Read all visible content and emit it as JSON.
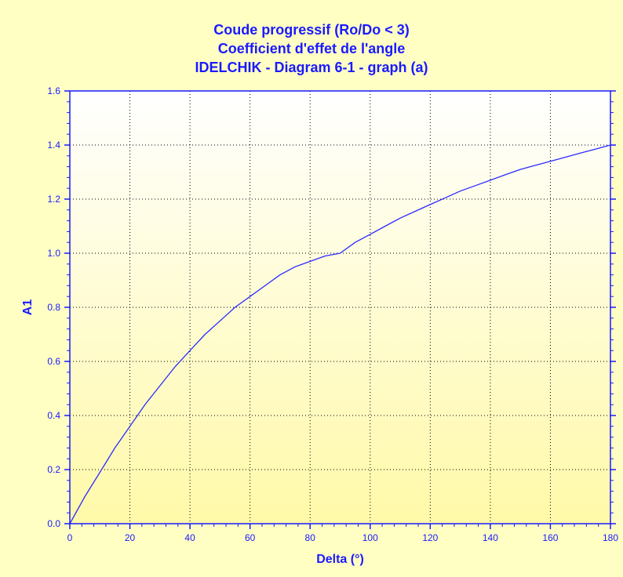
{
  "chart_data": {
    "type": "line",
    "title_lines": [
      "Coude progressif (Ro/Do < 3)",
      "Coefficient d'effet de l'angle",
      "IDELCHIK - Diagram 6-1 - graph (a)"
    ],
    "xlabel": "Delta (°)",
    "ylabel": "A1",
    "xlim": [
      0,
      180
    ],
    "ylim": [
      0,
      1.6
    ],
    "x_ticks": [
      "0",
      "20",
      "40",
      "60",
      "80",
      "100",
      "120",
      "140",
      "160",
      "180"
    ],
    "y_ticks": [
      "0.0",
      "0.2",
      "0.4",
      "0.6",
      "0.8",
      "1.0",
      "1.2",
      "1.4",
      "1.6"
    ],
    "grid": true,
    "series": [
      {
        "x": [
          0,
          5,
          10,
          15,
          20,
          25,
          30,
          35,
          40,
          45,
          50,
          55,
          60,
          65,
          70,
          75,
          80,
          85,
          90,
          95,
          100,
          105,
          110,
          115,
          120,
          125,
          130,
          135,
          140,
          145,
          150,
          155,
          160,
          165,
          170,
          175,
          180
        ],
        "y": [
          0,
          0.1,
          0.19,
          0.28,
          0.36,
          0.44,
          0.51,
          0.58,
          0.64,
          0.7,
          0.75,
          0.8,
          0.84,
          0.88,
          0.92,
          0.95,
          0.97,
          0.99,
          1.0,
          1.04,
          1.07,
          1.1,
          1.13,
          1.155,
          1.18,
          1.205,
          1.23,
          1.25,
          1.27,
          1.29,
          1.31,
          1.325,
          1.34,
          1.355,
          1.37,
          1.385,
          1.4
        ],
        "color": "#2b2bff"
      }
    ],
    "colors": {
      "text": "#1a1aff",
      "axis": "#1a1aff",
      "grid": "#000000",
      "plot_top": "#ffffff",
      "plot_bottom": "#fff9a8",
      "background": "#ffffc4"
    }
  }
}
